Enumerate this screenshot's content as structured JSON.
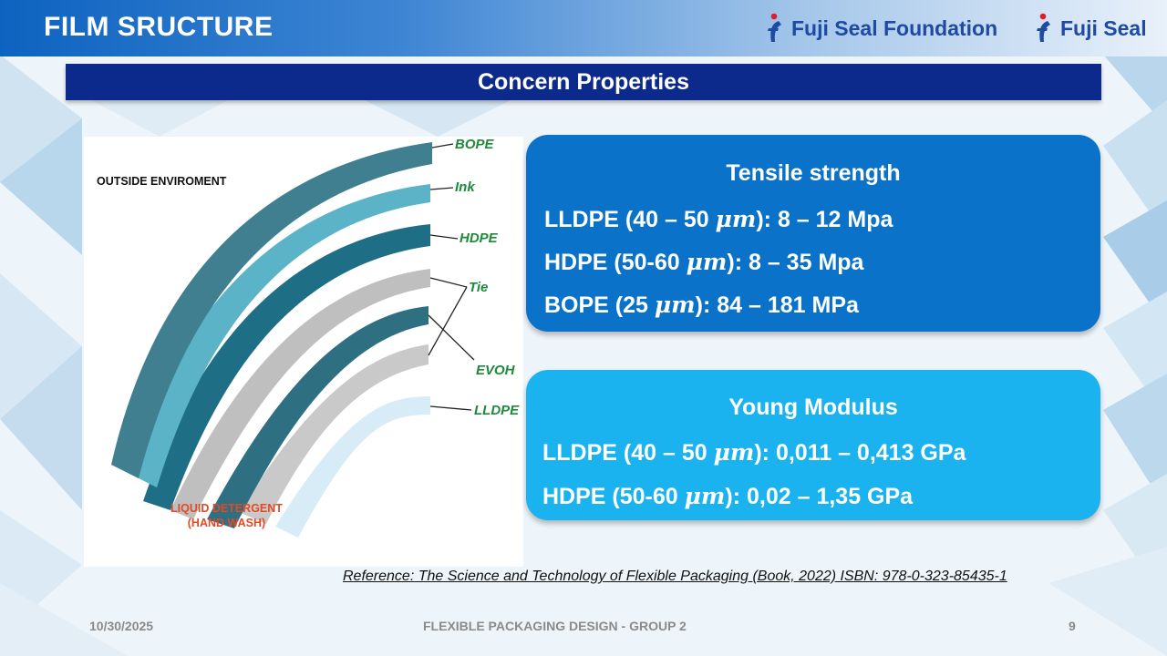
{
  "header": {
    "title": "FILM SRUCTURE",
    "logos": [
      {
        "name": "fuji-seal-foundation-logo",
        "text": "Fuji Seal Foundation"
      },
      {
        "name": "fuji-seal-logo",
        "text": "Fuji Seal"
      }
    ]
  },
  "section_title": "Concern Properties",
  "diagram": {
    "outside_label": "OUTSIDE ENVIROMENT",
    "inside_label_line1": "LIQUID DETERGENT",
    "inside_label_line2": "(HAND WASH)",
    "layers": [
      "BOPE",
      "Ink",
      "HDPE",
      "Tie",
      "EVOH",
      "LLDPE"
    ]
  },
  "tensile": {
    "heading": "Tensile strength",
    "lines": [
      {
        "pre": "LLDPE (40 – 50 ",
        "unit": "μm",
        "post": "): 8 – 12 Mpa"
      },
      {
        "pre": "HDPE (50-60 ",
        "unit": "μm",
        "post": "): 8 – 35 Mpa"
      },
      {
        "pre": "BOPE (25 ",
        "unit": "μm",
        "post": "): 84 – 181 MPa"
      }
    ]
  },
  "young": {
    "heading": "Young Modulus",
    "lines": [
      {
        "pre": "LLDPE (40 – 50 ",
        "unit": "μm",
        "post": "): 0,011 – 0,413 GPa"
      },
      {
        "pre": "HDPE (50-60 ",
        "unit": "μm",
        "post": "): 0,02 – 1,35 GPa"
      }
    ]
  },
  "reference": "Reference: The Science and Technology of Flexible Packaging (Book, 2022) ISBN: 978-0-323-85435-1",
  "footer": {
    "date": "10/30/2025",
    "center": "FLEXIBLE PACKAGING DESIGN - GROUP 2",
    "page": "9"
  },
  "colors": {
    "title_bar": "#0b2a8c",
    "tensile_panel": "#0a72c8",
    "young_panel": "#1ab2ef",
    "layer_label": "#1d8a3a",
    "detergent_label": "#e34a24"
  }
}
